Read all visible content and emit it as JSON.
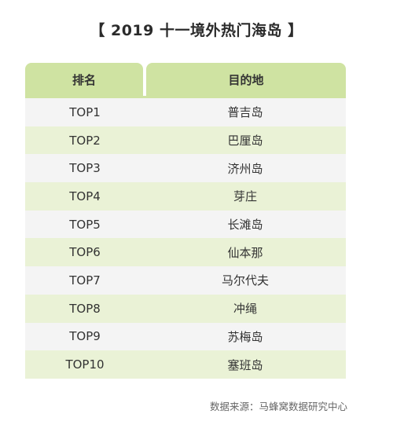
{
  "title": "【 2019 十一境外热门海岛 】",
  "table": {
    "headers": {
      "rank": "排名",
      "destination": "目的地"
    },
    "rows": [
      {
        "rank": "TOP1",
        "destination": "普吉岛"
      },
      {
        "rank": "TOP2",
        "destination": "巴厘岛"
      },
      {
        "rank": "TOP3",
        "destination": "济州岛"
      },
      {
        "rank": "TOP4",
        "destination": "芽庄"
      },
      {
        "rank": "TOP5",
        "destination": "长滩岛"
      },
      {
        "rank": "TOP6",
        "destination": "仙本那"
      },
      {
        "rank": "TOP7",
        "destination": "马尔代夫"
      },
      {
        "rank": "TOP8",
        "destination": "冲绳"
      },
      {
        "rank": "TOP9",
        "destination": "苏梅岛"
      },
      {
        "rank": "TOP10",
        "destination": "塞班岛"
      }
    ]
  },
  "source": "数据来源：马蜂窝数据研究中心",
  "colors": {
    "header_bg": "#cfe3a2",
    "row_odd": "#f4f4f4",
    "row_even": "#eaf2d6"
  }
}
